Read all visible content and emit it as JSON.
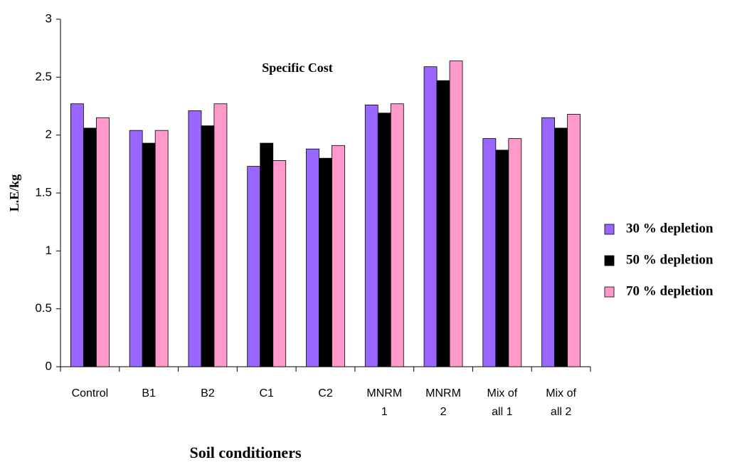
{
  "chart_data": {
    "type": "bar",
    "title": "Specific Cost",
    "x_label": "Soil conditioners",
    "y_label": "L.E/kg",
    "categories": [
      "Control",
      "B1",
      "B2",
      "C1",
      "C2",
      "MNRM 1",
      "MNRM 2",
      "Mix of all 1",
      "Mix of all 2"
    ],
    "series": [
      {
        "name": "30 % depletion",
        "color": "#9966ff",
        "values": [
          2.27,
          2.04,
          2.21,
          1.73,
          1.88,
          2.26,
          2.59,
          1.97,
          2.15
        ]
      },
      {
        "name": "50 % depletion",
        "color": "#000000",
        "values": [
          2.06,
          1.93,
          2.08,
          1.93,
          1.8,
          2.19,
          2.47,
          1.87,
          2.06
        ]
      },
      {
        "name": "70 % depletion",
        "color": "#ff99cc",
        "values": [
          2.15,
          2.04,
          2.27,
          1.78,
          1.91,
          2.27,
          2.64,
          1.97,
          2.18
        ]
      }
    ],
    "ylim": [
      0,
      3
    ],
    "yticks": [
      0,
      0.5,
      1,
      1.5,
      2,
      2.5,
      3
    ],
    "grid": false,
    "legend": "right"
  }
}
